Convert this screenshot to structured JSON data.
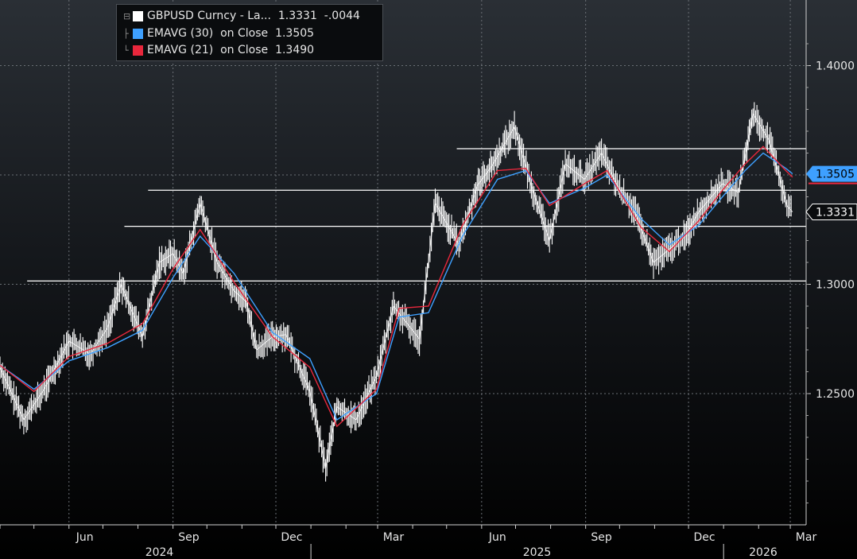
{
  "chart_data": {
    "type": "line",
    "title": "",
    "y_axis": {
      "side": "right",
      "ticks": [
        "1.2500",
        "1.3000",
        "1.4000"
      ],
      "tick_values": [
        1.25,
        1.3,
        1.4
      ],
      "ylim": [
        1.19,
        1.43
      ]
    },
    "x_axis": {
      "month_labels": [
        "Jun",
        "Sep",
        "Dec",
        "Mar",
        "Jun",
        "Sep",
        "Dec",
        "Mar"
      ],
      "month_label_dates": [
        "2024-06",
        "2024-09",
        "2024-12",
        "2025-03",
        "2025-06",
        "2025-09",
        "2025-12",
        "2026-03"
      ],
      "year_labels": [
        "2024",
        "2025",
        "2026"
      ],
      "xlim": [
        "2024-04-01",
        "2026-03-15"
      ]
    },
    "series": [
      {
        "name": "GBPUSD Curncy - La...",
        "kind": "price",
        "color": "#ffffff",
        "last": "1.3331",
        "change": "-.0044",
        "points": [
          [
            "2024-04-01",
            1.262
          ],
          [
            "2024-04-22",
            1.238
          ],
          [
            "2024-05-10",
            1.252
          ],
          [
            "2024-06-01",
            1.274
          ],
          [
            "2024-06-20",
            1.268
          ],
          [
            "2024-07-05",
            1.28
          ],
          [
            "2024-07-17",
            1.3
          ],
          [
            "2024-08-05",
            1.276
          ],
          [
            "2024-08-20",
            1.31
          ],
          [
            "2024-09-01",
            1.314
          ],
          [
            "2024-09-10",
            1.305
          ],
          [
            "2024-09-25",
            1.337
          ],
          [
            "2024-10-10",
            1.31
          ],
          [
            "2024-10-25",
            1.297
          ],
          [
            "2024-11-05",
            1.292
          ],
          [
            "2024-11-14",
            1.27
          ],
          [
            "2024-11-28",
            1.276
          ],
          [
            "2024-12-10",
            1.277
          ],
          [
            "2024-12-31",
            1.251
          ],
          [
            "2025-01-14",
            1.216
          ],
          [
            "2025-01-24",
            1.244
          ],
          [
            "2025-02-10",
            1.238
          ],
          [
            "2025-02-28",
            1.258
          ],
          [
            "2025-03-15",
            1.29
          ],
          [
            "2025-04-07",
            1.275
          ],
          [
            "2025-04-21",
            1.337
          ],
          [
            "2025-05-12",
            1.318
          ],
          [
            "2025-05-28",
            1.345
          ],
          [
            "2025-06-10",
            1.354
          ],
          [
            "2025-06-30",
            1.372
          ],
          [
            "2025-07-15",
            1.345
          ],
          [
            "2025-07-31",
            1.32
          ],
          [
            "2025-08-14",
            1.355
          ],
          [
            "2025-08-31",
            1.348
          ],
          [
            "2025-09-15",
            1.36
          ],
          [
            "2025-09-30",
            1.344
          ],
          [
            "2025-10-14",
            1.334
          ],
          [
            "2025-10-31",
            1.31
          ],
          [
            "2025-11-14",
            1.316
          ],
          [
            "2025-11-28",
            1.322
          ],
          [
            "2025-12-10",
            1.333
          ],
          [
            "2025-12-31",
            1.346
          ],
          [
            "2026-01-14",
            1.342
          ],
          [
            "2026-01-27",
            1.378
          ],
          [
            "2026-02-10",
            1.366
          ],
          [
            "2026-02-20",
            1.348
          ],
          [
            "2026-02-26",
            1.336
          ],
          [
            "2026-03-03",
            1.3331
          ]
        ]
      },
      {
        "name": "EMAVG (30)  on Close",
        "kind": "ema",
        "color": "#3ea0ff",
        "last": "1.3505",
        "points": [
          [
            "2024-04-01",
            1.263
          ],
          [
            "2024-05-01",
            1.252
          ],
          [
            "2024-06-01",
            1.265
          ],
          [
            "2024-07-05",
            1.271
          ],
          [
            "2024-08-05",
            1.279
          ],
          [
            "2024-09-01",
            1.303
          ],
          [
            "2024-09-25",
            1.322
          ],
          [
            "2024-10-25",
            1.305
          ],
          [
            "2024-11-28",
            1.278
          ],
          [
            "2024-12-31",
            1.266
          ],
          [
            "2025-01-24",
            1.238
          ],
          [
            "2025-02-28",
            1.25
          ],
          [
            "2025-03-20",
            1.285
          ],
          [
            "2025-04-15",
            1.287
          ],
          [
            "2025-05-15",
            1.322
          ],
          [
            "2025-06-15",
            1.348
          ],
          [
            "2025-07-10",
            1.352
          ],
          [
            "2025-07-31",
            1.337
          ],
          [
            "2025-08-31",
            1.344
          ],
          [
            "2025-09-20",
            1.35
          ],
          [
            "2025-10-20",
            1.33
          ],
          [
            "2025-11-14",
            1.318
          ],
          [
            "2025-12-10",
            1.327
          ],
          [
            "2025-12-31",
            1.34
          ],
          [
            "2026-01-20",
            1.352
          ],
          [
            "2026-02-05",
            1.36
          ],
          [
            "2026-02-25",
            1.353
          ],
          [
            "2026-03-03",
            1.3505
          ]
        ]
      },
      {
        "name": "EMAVG (21)  on Close",
        "kind": "ema",
        "color": "#e8273c",
        "last": "1.3490",
        "points": [
          [
            "2024-04-01",
            1.263
          ],
          [
            "2024-05-01",
            1.251
          ],
          [
            "2024-06-01",
            1.267
          ],
          [
            "2024-07-05",
            1.273
          ],
          [
            "2024-08-05",
            1.282
          ],
          [
            "2024-09-01",
            1.307
          ],
          [
            "2024-09-25",
            1.325
          ],
          [
            "2024-10-25",
            1.301
          ],
          [
            "2024-11-28",
            1.276
          ],
          [
            "2024-12-31",
            1.262
          ],
          [
            "2025-01-24",
            1.235
          ],
          [
            "2025-02-28",
            1.252
          ],
          [
            "2025-03-20",
            1.289
          ],
          [
            "2025-04-15",
            1.29
          ],
          [
            "2025-05-15",
            1.327
          ],
          [
            "2025-06-15",
            1.352
          ],
          [
            "2025-07-10",
            1.353
          ],
          [
            "2025-07-31",
            1.336
          ],
          [
            "2025-08-31",
            1.346
          ],
          [
            "2025-09-20",
            1.352
          ],
          [
            "2025-10-20",
            1.326
          ],
          [
            "2025-11-14",
            1.315
          ],
          [
            "2025-12-10",
            1.329
          ],
          [
            "2025-12-31",
            1.343
          ],
          [
            "2026-01-20",
            1.355
          ],
          [
            "2026-02-05",
            1.363
          ],
          [
            "2026-02-25",
            1.352
          ],
          [
            "2026-03-03",
            1.349
          ]
        ]
      }
    ],
    "reference_lines": [
      {
        "value": 1.362,
        "from": "2025-05-10",
        "to": "2026-03-15"
      },
      {
        "value": 1.343,
        "from": "2024-08-10",
        "to": "2026-03-15"
      },
      {
        "value": 1.3265,
        "from": "2024-07-20",
        "to": "2026-03-15"
      },
      {
        "value": 1.3015,
        "from": "2024-04-25",
        "to": "2026-03-15"
      }
    ],
    "grid": true,
    "legend_position": "top-left"
  },
  "legend": {
    "entries": [
      {
        "label": "GBPUSD Curncy - La...",
        "value": "1.3331",
        "change": "-.0044",
        "color": "#ffffff"
      },
      {
        "label": "EMAVG (30)  on Close",
        "value": "1.3505",
        "change": "",
        "color": "#3ea0ff"
      },
      {
        "label": "EMAVG (21)  on Close",
        "value": "1.3490",
        "change": "",
        "color": "#e8273c"
      }
    ]
  },
  "axis_tags": [
    {
      "text": "1.3505",
      "value": 1.3505,
      "style": "blue"
    },
    {
      "text": "1.3331",
      "value": 1.3331,
      "style": "white"
    }
  ]
}
